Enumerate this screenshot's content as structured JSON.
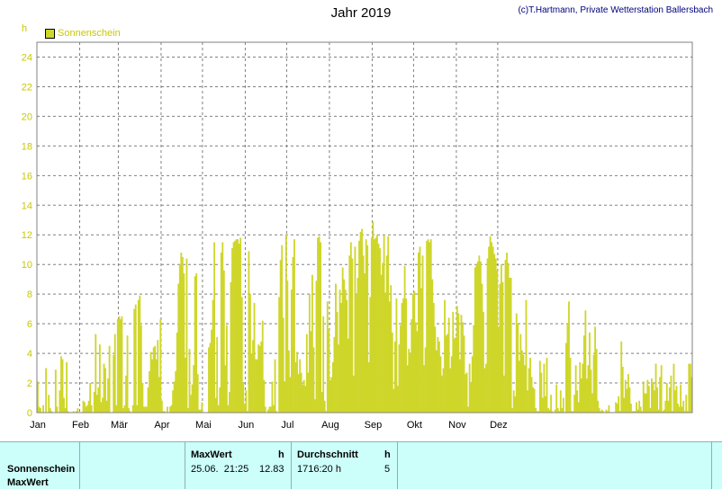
{
  "title": "Jahr 2019",
  "credit": "(c)T.Hartmann, Private Wetterstation Ballersbach",
  "unit_label": "h",
  "legend_label": "Sonnenschein",
  "table": {
    "row_label_1": "Sonnenschein",
    "row_label_2": "MaxWert",
    "max_header": "MaxWert",
    "max_unit": "h",
    "max_datetime": "25.06.  21:25",
    "max_value": "12.83",
    "avg_header": "Durchschnitt",
    "avg_unit": "h",
    "avg_total": "1716:20 h",
    "avg_value": "5"
  },
  "chart_data": {
    "type": "bar",
    "title": "Jahr 2019",
    "ylabel": "h",
    "ylim": [
      0,
      25
    ],
    "yticks": [
      "0",
      "2",
      "4",
      "6",
      "8",
      "10",
      "12",
      "14",
      "16",
      "18",
      "20",
      "22",
      "24"
    ],
    "xticks": [
      "Jan",
      "Feb",
      "Mär",
      "Apr",
      "Mai",
      "Jun",
      "Jul",
      "Aug",
      "Sep",
      "Okt",
      "Nov",
      "Dez"
    ],
    "grid": true,
    "series": [
      {
        "name": "Sonnenschein",
        "color": "#cfd62a",
        "values": [
          2.1,
          0.4,
          0.3,
          0,
          0.5,
          0,
          3,
          0,
          1.2,
          0.3,
          0.1,
          0,
          0,
          2.9,
          0.4,
          0,
          1.5,
          3.8,
          3.6,
          1,
          0.3,
          3.4,
          0.1,
          0,
          0,
          0,
          0.1,
          0,
          0.1,
          0.3,
          0,
          0,
          0,
          0.8,
          0.7,
          0.4,
          0.5,
          0.8,
          2,
          0.5,
          0,
          1.4,
          5.3,
          1.2,
          1.7,
          4.6,
          0.7,
          1,
          3.3,
          3,
          0.8,
          2.3,
          4.5,
          0,
          0,
          3.9,
          5.3,
          0.5,
          6.3,
          6.5,
          6.3,
          6.5,
          0.3,
          0.5,
          2.5,
          5.2,
          0.3,
          0.1,
          0,
          0.5,
          7,
          7.3,
          0.5,
          7.6,
          7.9,
          5.9,
          2,
          0.4,
          0.4,
          0.4,
          1.7,
          2.8,
          4.1,
          3.6,
          4.4,
          4.5,
          3.6,
          4.9,
          2.4,
          6.3,
          0.8,
          0.1,
          0.1,
          0,
          0.4,
          0,
          0.4,
          0.5,
          1.5,
          2.1,
          2.8,
          5.4,
          8.7,
          10,
          10.8,
          10.5,
          9.4,
          3.7,
          10.4,
          0.3,
          4.3,
          1.2,
          1.9,
          3.2,
          9.2,
          9.4,
          2.6,
          0.2,
          0.2,
          0.7,
          0,
          0,
          0,
          0,
          4.4,
          4.7,
          5.6,
          7.6,
          11.5,
          1,
          5.1,
          0.5,
          1.7,
          10.8,
          11.5,
          9.6,
          3.2,
          5.9,
          0.5,
          1.4,
          8.8,
          11.1,
          11.5,
          11.6,
          11.7,
          11.7,
          11.4,
          11.8,
          7.8,
          2,
          0.6,
          1.5,
          0.1,
          10.9,
          8,
          4,
          4.9,
          7.4,
          3.6,
          3.6,
          4.6,
          4.5,
          4.8,
          6.2,
          2.2,
          0.4,
          0,
          0.2,
          0.4,
          0.4,
          2.1,
          0.5,
          3.6,
          0.1,
          0,
          7.8,
          10.3,
          11.3,
          6.4,
          2.1,
          12,
          8.9,
          4.2,
          2.4,
          8.3,
          10.5,
          11.7,
          3.4,
          4.1,
          2.6,
          3.6,
          2.7,
          1.9,
          2.2,
          1.8,
          5.3,
          2.7,
          8,
          5.5,
          9.3,
          4.4,
          0.9,
          8.9,
          11.8,
          11.9,
          11.5,
          1.4,
          6.5,
          0.8,
          0.1,
          7.5,
          5.6,
          2.2,
          2.4,
          3.4,
          5.1,
          8.7,
          6.8,
          4.6,
          8.3,
          7.4,
          9.8,
          9,
          8.3,
          7.6,
          5,
          10.6,
          11.5,
          10.4,
          2.5,
          11.2,
          8,
          9.1,
          11.6,
          12.2,
          12.4,
          10.6,
          9.4,
          11.7,
          11.3,
          3.4,
          7.8,
          11.8,
          12.9,
          11.7,
          11.8,
          12,
          11.4,
          11.1,
          9.3,
          10.1,
          12,
          8.1,
          10.6,
          11.9,
          7.5,
          8.6,
          5.4,
          1.6,
          4.8,
          7.7,
          1.8,
          4.6,
          5.9,
          7.4,
          7.7,
          9.9,
          7.7,
          3.2,
          4.3,
          4,
          6.3,
          8,
          8.2,
          6.1,
          5.5,
          10.8,
          11.2,
          8.4,
          10.6,
          3.2,
          4.4,
          11.6,
          11.7,
          11.5,
          11.7,
          9,
          7.4,
          5.8,
          4.2,
          5.1,
          4.8,
          3.8,
          2.5,
          3,
          7.6,
          5.2,
          5.3,
          6.4,
          3,
          3.8,
          6.8,
          5,
          5.1,
          7.2,
          6.7,
          3.6,
          6.6,
          6.1,
          5.2,
          2.6,
          2.7,
          0.4,
          3.3,
          2,
          3.8,
          5.9,
          9.8,
          10,
          10.2,
          10.6,
          10.2,
          8.7,
          6.8,
          3,
          3.3,
          10.4,
          11.2,
          11.9,
          11.5,
          11.2,
          10.7,
          10.4,
          9.6,
          5.8,
          8.7,
          10,
          8.8,
          2.5,
          10.3,
          10.8,
          10.1,
          9.1,
          9.1,
          0.3,
          1.5,
          1.1,
          6.7,
          6,
          3.5,
          5.3,
          4.2,
          3.9,
          3.2,
          7.6,
          1.5,
          3,
          3.7,
          2.4,
          1.7,
          1.6,
          0.3,
          0.1,
          0.1,
          3.5,
          2.7,
          1,
          3.3,
          1.1,
          3.7,
          0.3,
          0.2,
          1.2,
          0.1,
          0,
          0.2,
          1.9,
          0.3,
          0.1,
          1.5,
          0.3,
          1,
          0,
          4.7,
          6,
          7.5,
          3.7,
          0.1,
          0.1,
          1.2,
          3.2,
          1.5,
          0.7,
          3.4,
          2.3,
          3.3,
          5.2,
          6.9,
          2.3,
          3.2,
          5.4,
          2.9,
          1.3,
          3.9,
          5.8,
          4.3,
          0.8,
          0.3,
          0.1,
          0.2,
          0.1,
          0,
          0.2,
          0.1,
          0.5,
          0,
          0,
          0,
          0,
          0.7,
          0.6,
          1.1,
          0.1,
          4.8,
          3.1,
          1,
          2.2,
          1.6,
          2.6,
          1.7,
          0.6,
          0.1,
          0.1,
          0.1,
          0.7,
          0.2,
          0.8,
          0.4,
          0.1,
          2.1,
          1.3,
          1.3,
          2.2,
          1.8,
          0.3,
          2.3,
          2,
          1.5,
          3.3,
          1.7,
          0.2,
          2.4,
          3.2,
          0.1,
          0.2,
          0.8,
          2,
          0.8,
          1.7,
          2.5,
          0.1,
          3.3,
          1.5,
          1.8,
          0.6,
          0.4,
          1.9,
          0.4,
          0.8,
          0.1,
          1.2,
          0.1,
          3.3,
          3.3,
          2.4
        ]
      }
    ]
  }
}
